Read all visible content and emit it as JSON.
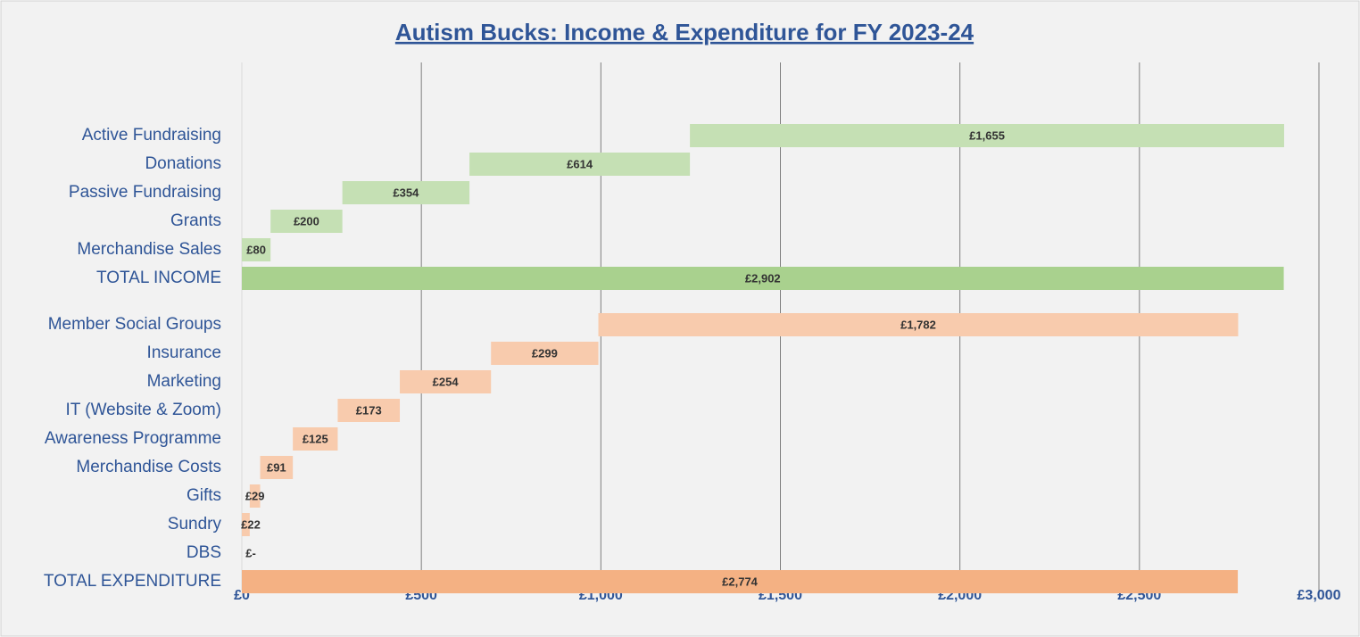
{
  "chart_data": {
    "type": "waterfall",
    "title": "Autism Bucks:  Income & Expenditure for FY 2023-24",
    "groups": [
      {
        "categories": [
          "Active Fundraising",
          "Donations",
          "Passive Fundraising",
          "Grants",
          "Merchandise Sales"
        ],
        "values": [
          1655,
          614,
          354,
          200,
          80
        ],
        "value_labels": [
          "£1,655",
          "£614",
          "£354",
          "£200",
          "£80"
        ],
        "color": "#c5e0b4",
        "total_category": "TOTAL INCOME",
        "total_value": 2902,
        "total_label": "£2,902",
        "total_color": "#a9d18e"
      },
      {
        "categories": [
          "Member Social Groups",
          "Insurance",
          "Marketing",
          "IT (Website & Zoom)",
          "Awareness Programme",
          "Merchandise Costs",
          "Gifts",
          "Sundry",
          "DBS"
        ],
        "values": [
          1782,
          299,
          254,
          173,
          125,
          91,
          29,
          22,
          0
        ],
        "value_labels": [
          "£1,782",
          "£299",
          "£254",
          "£173",
          "£125",
          "£91",
          "£29",
          "£22",
          "£-"
        ],
        "color": "#f8cbad",
        "total_category": "TOTAL EXPENDITURE",
        "total_value": 2774,
        "total_label": "£2,774",
        "total_color": "#f4b183"
      }
    ],
    "xlim": [
      0,
      3000
    ],
    "xticks": [
      {
        "value": 0,
        "label": "£0"
      },
      {
        "value": 500,
        "label": "£500"
      },
      {
        "value": 1000,
        "label": "£1,000"
      },
      {
        "value": 1500,
        "label": "£1,500"
      },
      {
        "value": 2000,
        "label": "£2,000"
      },
      {
        "value": 2500,
        "label": "£2,500"
      },
      {
        "value": 3000,
        "label": "£3,000"
      }
    ],
    "grid": true
  }
}
